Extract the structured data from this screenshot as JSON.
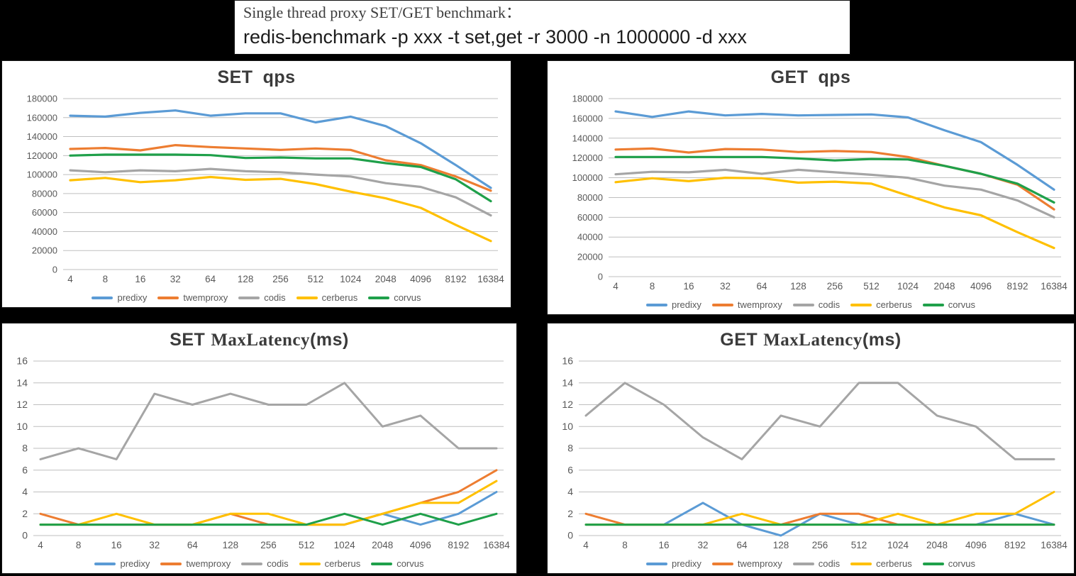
{
  "header": {
    "line1": "Single thread proxy SET/GET benchmark：",
    "line2": "redis-benchmark -p xxx -t set,get -r 3000 -n 1000000 -d xxx"
  },
  "colors": {
    "predixy": "#5B9BD5",
    "twemproxy": "#ED7D31",
    "codis": "#A5A5A5",
    "cerberus": "#FFC000",
    "corvus": "#1FA04A",
    "grid": "#BFBFBF",
    "axis_label": "#595959",
    "title_text": "#3B3B3B",
    "page_background": "#000000",
    "panel_background": "#FFFFFF"
  },
  "chart_data": [
    {
      "id": "set-qps",
      "type": "line",
      "title": "SET qps",
      "title_parts": {
        "prefix": "SET",
        "mid": "qps",
        "suffix": ""
      },
      "categories": [
        "4",
        "8",
        "16",
        "32",
        "64",
        "128",
        "256",
        "512",
        "1024",
        "2048",
        "4096",
        "8192",
        "16384"
      ],
      "ylim": [
        0,
        180000
      ],
      "ytick": 20000,
      "grid": true,
      "legend_position": "bottom",
      "series": [
        {
          "name": "predixy",
          "color": "#5B9BD5",
          "values": [
            162000,
            161000,
            165000,
            167500,
            162000,
            164500,
            164500,
            155000,
            161000,
            151000,
            133000,
            110000,
            86000
          ]
        },
        {
          "name": "twemproxy",
          "color": "#ED7D31",
          "values": [
            127000,
            128000,
            125500,
            131000,
            129000,
            127500,
            126000,
            127500,
            126000,
            115000,
            110000,
            98000,
            83000
          ]
        },
        {
          "name": "codis",
          "color": "#A5A5A5",
          "values": [
            104500,
            102500,
            104500,
            103500,
            106000,
            103500,
            102500,
            100000,
            98000,
            91000,
            87000,
            76000,
            57000
          ]
        },
        {
          "name": "cerberus",
          "color": "#FFC000",
          "values": [
            94000,
            96500,
            92000,
            94000,
            97500,
            94500,
            95500,
            90000,
            82000,
            75000,
            65000,
            47000,
            30000
          ]
        },
        {
          "name": "corvus",
          "color": "#1FA04A",
          "values": [
            120000,
            121000,
            121000,
            121000,
            120500,
            117500,
            118000,
            117000,
            117000,
            112000,
            108000,
            95000,
            72000
          ]
        }
      ]
    },
    {
      "id": "get-qps",
      "type": "line",
      "title": "GET qps",
      "title_parts": {
        "prefix": "GET",
        "mid": "qps",
        "suffix": ""
      },
      "categories": [
        "4",
        "8",
        "16",
        "32",
        "64",
        "128",
        "256",
        "512",
        "1024",
        "2048",
        "4096",
        "8192",
        "16384"
      ],
      "ylim": [
        0,
        180000
      ],
      "ytick": 20000,
      "grid": true,
      "legend_position": "bottom",
      "series": [
        {
          "name": "predixy",
          "color": "#5B9BD5",
          "values": [
            167000,
            161500,
            167000,
            163000,
            164500,
            163000,
            163500,
            164000,
            161000,
            148000,
            136000,
            113000,
            88000
          ]
        },
        {
          "name": "twemproxy",
          "color": "#ED7D31",
          "values": [
            128500,
            129500,
            125500,
            129000,
            128500,
            126000,
            127000,
            126000,
            121000,
            112000,
            104000,
            93000,
            68000
          ]
        },
        {
          "name": "codis",
          "color": "#A5A5A5",
          "values": [
            103500,
            106000,
            105500,
            108000,
            104000,
            108000,
            105500,
            103000,
            100000,
            92000,
            88000,
            77000,
            60000
          ]
        },
        {
          "name": "cerberus",
          "color": "#FFC000",
          "values": [
            95500,
            99500,
            96500,
            100000,
            99500,
            95000,
            96000,
            94000,
            82000,
            70000,
            62000,
            45000,
            29000
          ]
        },
        {
          "name": "corvus",
          "color": "#1FA04A",
          "values": [
            121000,
            121000,
            121000,
            121000,
            121000,
            119500,
            117500,
            119000,
            118500,
            112000,
            104000,
            94000,
            75000
          ]
        }
      ]
    },
    {
      "id": "set-maxlatency",
      "type": "line",
      "title": "SET MaxLatency(ms)",
      "title_parts": {
        "prefix": "SET",
        "mid": "MaxLatency",
        "suffix": "(ms)"
      },
      "categories": [
        "4",
        "8",
        "16",
        "32",
        "64",
        "128",
        "256",
        "512",
        "1024",
        "2048",
        "4096",
        "8192",
        "16384"
      ],
      "ylim": [
        0,
        16
      ],
      "ytick": 2,
      "grid": true,
      "legend_position": "bottom",
      "series": [
        {
          "name": "predixy",
          "color": "#5B9BD5",
          "values": [
            1,
            1,
            1,
            1,
            1,
            1,
            1,
            1,
            1,
            2,
            1,
            2,
            4
          ]
        },
        {
          "name": "twemproxy",
          "color": "#ED7D31",
          "values": [
            2,
            1,
            1,
            1,
            1,
            2,
            1,
            1,
            1,
            2,
            3,
            4,
            6
          ]
        },
        {
          "name": "codis",
          "color": "#A5A5A5",
          "values": [
            7,
            8,
            7,
            13,
            12,
            13,
            12,
            12,
            14,
            10,
            11,
            8,
            8
          ]
        },
        {
          "name": "cerberus",
          "color": "#FFC000",
          "values": [
            1,
            1,
            2,
            1,
            1,
            2,
            2,
            1,
            1,
            2,
            3,
            3,
            5
          ]
        },
        {
          "name": "corvus",
          "color": "#1FA04A",
          "values": [
            1,
            1,
            1,
            1,
            1,
            1,
            1,
            1,
            2,
            1,
            2,
            1,
            2
          ]
        }
      ]
    },
    {
      "id": "get-maxlatency",
      "type": "line",
      "title": "GET MaxLatency(ms)",
      "title_parts": {
        "prefix": "GET",
        "mid": "MaxLatency",
        "suffix": "(ms)"
      },
      "categories": [
        "4",
        "8",
        "16",
        "32",
        "64",
        "128",
        "256",
        "512",
        "1024",
        "2048",
        "4096",
        "8192",
        "16384"
      ],
      "ylim": [
        0,
        16
      ],
      "ytick": 2,
      "grid": true,
      "legend_position": "bottom",
      "series": [
        {
          "name": "predixy",
          "color": "#5B9BD5",
          "values": [
            1,
            1,
            1,
            3,
            1,
            0,
            2,
            1,
            1,
            1,
            1,
            2,
            1
          ]
        },
        {
          "name": "twemproxy",
          "color": "#ED7D31",
          "values": [
            2,
            1,
            1,
            1,
            1,
            1,
            2,
            2,
            1,
            1,
            1,
            1,
            1
          ]
        },
        {
          "name": "codis",
          "color": "#A5A5A5",
          "values": [
            11,
            14,
            12,
            9,
            7,
            11,
            10,
            14,
            14,
            11,
            10,
            7,
            7
          ]
        },
        {
          "name": "cerberus",
          "color": "#FFC000",
          "values": [
            1,
            1,
            1,
            1,
            2,
            1,
            1,
            1,
            2,
            1,
            2,
            2,
            4
          ]
        },
        {
          "name": "corvus",
          "color": "#1FA04A",
          "values": [
            1,
            1,
            1,
            1,
            1,
            1,
            1,
            1,
            1,
            1,
            1,
            1,
            1
          ]
        }
      ]
    }
  ]
}
